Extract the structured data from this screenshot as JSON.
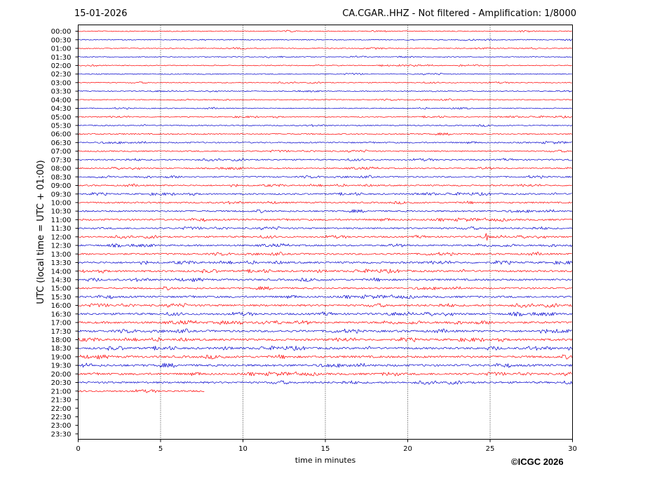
{
  "header": {
    "date": "15-01-2026",
    "title": "CA.CGAR..HHZ - Not filtered - Amplification: 1/8000"
  },
  "footer": {
    "copyright": "©ICGC 2026"
  },
  "colors": {
    "trace_red": "#ff0000",
    "trace_blue": "#0000cc",
    "axis": "#000000",
    "grid": "#000000"
  },
  "chart_data": {
    "type": "line",
    "title": "CA.CGAR..HHZ - Not filtered - Amplification: 1/8000",
    "xlabel": "time in minutes",
    "ylabel": "UTC (local time = UTC + 01:00)",
    "xlim": [
      0,
      30
    ],
    "xticks": [
      "0",
      "5",
      "10",
      "15",
      "20",
      "25",
      "30"
    ],
    "grid": "vertical dotted lines at x ticks",
    "yticks": [
      "00:00",
      "00:30",
      "01:00",
      "01:30",
      "02:00",
      "02:30",
      "03:00",
      "03:30",
      "04:00",
      "04:30",
      "05:00",
      "05:30",
      "06:00",
      "06:30",
      "07:00",
      "07:30",
      "08:00",
      "08:30",
      "09:00",
      "09:30",
      "10:00",
      "10:30",
      "11:00",
      "11:30",
      "12:00",
      "12:30",
      "13:00",
      "13:30",
      "14:00",
      "14:30",
      "15:00",
      "15:30",
      "16:00",
      "16:30",
      "17:00",
      "17:30",
      "18:00",
      "18:30",
      "19:00",
      "19:30",
      "20:00",
      "20:30",
      "21:00",
      "21:30",
      "22:00",
      "22:30",
      "23:00",
      "23:30"
    ],
    "series": [
      {
        "row": "00:00",
        "color": "red",
        "end_min": 30,
        "activity": 0.2
      },
      {
        "row": "00:30",
        "color": "blue",
        "end_min": 30,
        "activity": 0.2
      },
      {
        "row": "01:00",
        "color": "red",
        "end_min": 30,
        "activity": 0.2
      },
      {
        "row": "01:30",
        "color": "blue",
        "end_min": 30,
        "activity": 0.2
      },
      {
        "row": "02:00",
        "color": "red",
        "end_min": 30,
        "activity": 0.2
      },
      {
        "row": "02:30",
        "color": "blue",
        "end_min": 30,
        "activity": 0.2
      },
      {
        "row": "03:00",
        "color": "red",
        "end_min": 30,
        "activity": 0.2
      },
      {
        "row": "03:30",
        "color": "blue",
        "end_min": 30,
        "activity": 0.2
      },
      {
        "row": "04:00",
        "color": "red",
        "end_min": 30,
        "activity": 0.2
      },
      {
        "row": "04:30",
        "color": "blue",
        "end_min": 30,
        "activity": 0.2
      },
      {
        "row": "05:00",
        "color": "red",
        "end_min": 30,
        "activity": 0.25
      },
      {
        "row": "05:30",
        "color": "blue",
        "end_min": 30,
        "activity": 0.3
      },
      {
        "row": "06:00",
        "color": "red",
        "end_min": 30,
        "activity": 0.35
      },
      {
        "row": "06:30",
        "color": "blue",
        "end_min": 30,
        "activity": 0.4
      },
      {
        "row": "07:00",
        "color": "red",
        "end_min": 30,
        "activity": 0.35
      },
      {
        "row": "07:30",
        "color": "blue",
        "end_min": 30,
        "activity": 0.4
      },
      {
        "row": "08:00",
        "color": "red",
        "end_min": 30,
        "activity": 0.4
      },
      {
        "row": "08:30",
        "color": "blue",
        "end_min": 30,
        "activity": 0.45
      },
      {
        "row": "09:00",
        "color": "red",
        "end_min": 30,
        "activity": 0.45
      },
      {
        "row": "09:30",
        "color": "blue",
        "end_min": 30,
        "activity": 0.5
      },
      {
        "row": "10:00",
        "color": "red",
        "end_min": 30,
        "activity": 0.5
      },
      {
        "row": "10:30",
        "color": "blue",
        "end_min": 30,
        "activity": 0.55
      },
      {
        "row": "11:00",
        "color": "red",
        "end_min": 30,
        "activity": 0.6
      },
      {
        "row": "11:30",
        "color": "blue",
        "end_min": 30,
        "activity": 0.55
      },
      {
        "row": "12:00",
        "color": "red",
        "end_min": 30,
        "activity": 0.55,
        "spike_min": 24.8
      },
      {
        "row": "12:30",
        "color": "blue",
        "end_min": 30,
        "activity": 0.6
      },
      {
        "row": "13:00",
        "color": "red",
        "end_min": 30,
        "activity": 0.6
      },
      {
        "row": "13:30",
        "color": "blue",
        "end_min": 30,
        "activity": 0.7
      },
      {
        "row": "14:00",
        "color": "red",
        "end_min": 30,
        "activity": 0.7
      },
      {
        "row": "14:30",
        "color": "blue",
        "end_min": 30,
        "activity": 0.7
      },
      {
        "row": "15:00",
        "color": "red",
        "end_min": 30,
        "activity": 0.6
      },
      {
        "row": "15:30",
        "color": "blue",
        "end_min": 30,
        "activity": 0.7
      },
      {
        "row": "16:00",
        "color": "red",
        "end_min": 30,
        "activity": 0.75
      },
      {
        "row": "16:30",
        "color": "blue",
        "end_min": 30,
        "activity": 0.75
      },
      {
        "row": "17:00",
        "color": "red",
        "end_min": 30,
        "activity": 0.8
      },
      {
        "row": "17:30",
        "color": "blue",
        "end_min": 30,
        "activity": 0.8
      },
      {
        "row": "18:00",
        "color": "red",
        "end_min": 30,
        "activity": 0.8
      },
      {
        "row": "18:30",
        "color": "blue",
        "end_min": 30,
        "activity": 0.8
      },
      {
        "row": "19:00",
        "color": "red",
        "end_min": 30,
        "activity": 0.85
      },
      {
        "row": "19:30",
        "color": "blue",
        "end_min": 30,
        "activity": 0.85
      },
      {
        "row": "20:00",
        "color": "red",
        "end_min": 30,
        "activity": 0.75
      },
      {
        "row": "20:30",
        "color": "blue",
        "end_min": 30,
        "activity": 0.7
      },
      {
        "row": "21:00",
        "color": "red",
        "end_min": 7.7,
        "activity": 0.6
      }
    ]
  }
}
